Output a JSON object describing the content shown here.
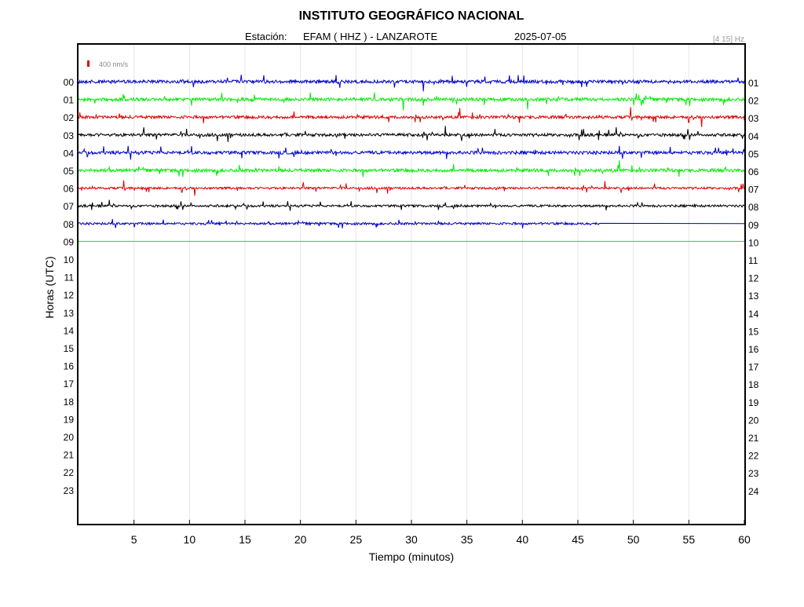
{
  "chart_data": {
    "type": "line",
    "title": "INSTITUTO GEOGRÁFICO NACIONAL",
    "station_label": "Estación:",
    "station": "EFAM ( HHZ ) - LANZAROTE",
    "date": "2025-07-05",
    "filter_label": "[4 15] Hz",
    "scale_label": "400 nm/s",
    "xlabel": "Tiempo (minutos)",
    "ylabel": "Horas (UTC)",
    "xlim": [
      0,
      60
    ],
    "x_ticks": [
      "5",
      "10",
      "15",
      "20",
      "25",
      "30",
      "35",
      "40",
      "45",
      "50",
      "55",
      "60"
    ],
    "x_tick_values": [
      5,
      10,
      15,
      20,
      25,
      30,
      35,
      40,
      45,
      50,
      55,
      60
    ],
    "left_hour_labels": [
      "00",
      "01",
      "02",
      "03",
      "04",
      "05",
      "06",
      "07",
      "08",
      "09",
      "10",
      "11",
      "12",
      "13",
      "14",
      "15",
      "16",
      "17",
      "18",
      "19",
      "20",
      "21",
      "22",
      "23"
    ],
    "right_hour_labels": [
      "01",
      "02",
      "03",
      "04",
      "05",
      "06",
      "07",
      "08",
      "09",
      "10",
      "11",
      "12",
      "13",
      "14",
      "15",
      "16",
      "17",
      "18",
      "19",
      "20",
      "21",
      "22",
      "23",
      "24"
    ],
    "grid": "vertical",
    "series_colors": [
      "#0000cc",
      "#00ee00",
      "#dd0000",
      "#000000"
    ],
    "traces": [
      {
        "hour": "00",
        "color": "#0000cc",
        "end_minute": 60,
        "amplitude": 1.0
      },
      {
        "hour": "01",
        "color": "#00ee00",
        "end_minute": 60,
        "amplitude": 1.0
      },
      {
        "hour": "02",
        "color": "#dd0000",
        "end_minute": 60,
        "amplitude": 0.9
      },
      {
        "hour": "03",
        "color": "#000000",
        "end_minute": 60,
        "amplitude": 0.9
      },
      {
        "hour": "04",
        "color": "#0000cc",
        "end_minute": 60,
        "amplitude": 1.0
      },
      {
        "hour": "05",
        "color": "#00ee00",
        "end_minute": 60,
        "amplitude": 1.0
      },
      {
        "hour": "06",
        "color": "#dd0000",
        "end_minute": 60,
        "amplitude": 0.7
      },
      {
        "hour": "07",
        "color": "#000000",
        "end_minute": 60,
        "amplitude": 0.7
      },
      {
        "hour": "08",
        "color": "#0000cc",
        "end_minute": 47,
        "amplitude": 0.7
      },
      {
        "hour": "09",
        "color": "#00ee00",
        "end_minute": 0,
        "amplitude": 0
      }
    ]
  }
}
